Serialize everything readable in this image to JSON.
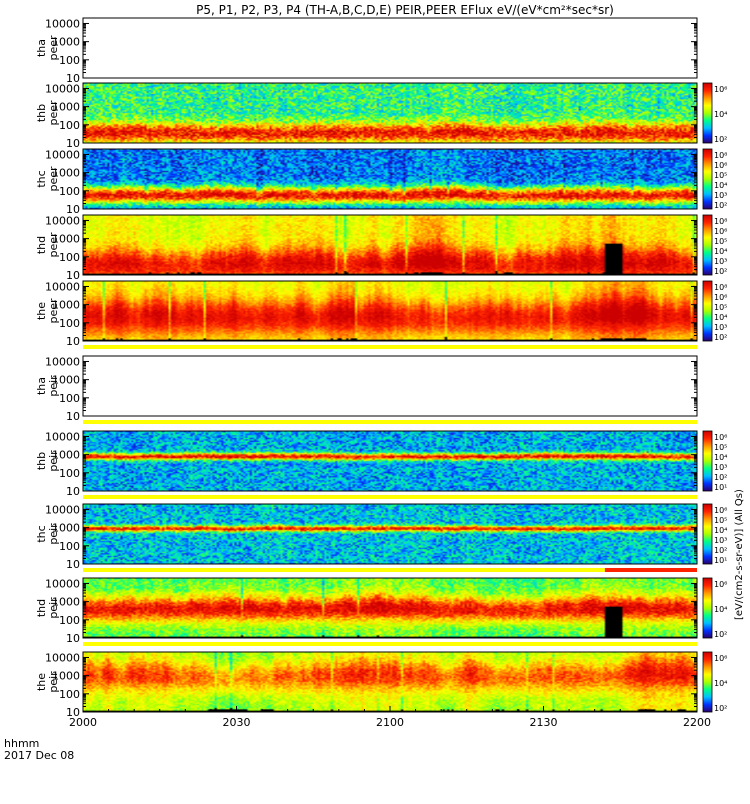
{
  "chart_data": {
    "type": "heatmap",
    "title": "P5, P1, P2, P3, P4 (TH-A,B,C,D,E) PEIR,PEER EFlux eV/(eV*cm²*sec*sr)",
    "x_axis": {
      "label_line1": "hhmm",
      "label_line2": "2017 Dec 08",
      "ticks": [
        "2000",
        "2030",
        "2100",
        "2130",
        "2200"
      ],
      "range_minutes": [
        0,
        120
      ]
    },
    "y_axis": {
      "scale": "log",
      "range": [
        10,
        20000
      ],
      "tick_labels": [
        "10",
        "100",
        "1000",
        "10000"
      ]
    },
    "panels": [
      {
        "label_top": "tha",
        "label_bottom": "peer",
        "has_data": false,
        "low_energy_mask": false,
        "gap_band_after": false
      },
      {
        "label_top": "thb",
        "label_bottom": "peer",
        "has_data": true,
        "colorbar": [
          "10⁶",
          "10⁴",
          "10²"
        ],
        "core_log_energy": 1.55,
        "core_width": 0.55,
        "core_level": 0.93,
        "background_level": 0.38,
        "noise": 0.16,
        "structure": 0.04,
        "low_energy_mask": false,
        "gap_band_after": false
      },
      {
        "label_top": "thc",
        "label_bottom": "peer",
        "has_data": true,
        "colorbar": [
          "10⁸",
          "10⁶",
          "10⁵",
          "10⁴",
          "10³",
          "10²"
        ],
        "core_log_energy": 1.75,
        "core_width": 0.45,
        "core_level": 0.93,
        "background_level": 0.18,
        "noise": 0.14,
        "structure": 0.05,
        "low_energy_mask": false,
        "gap_band_after": false
      },
      {
        "label_top": "thd",
        "label_bottom": "peer",
        "has_data": true,
        "colorbar": [
          "10⁸",
          "10⁶",
          "10⁵",
          "10⁴",
          "10³",
          "10²"
        ],
        "core_log_energy": 1.6,
        "core_width": 0.85,
        "core_level": 0.95,
        "background_level": 0.62,
        "noise": 0.07,
        "structure": 0.12,
        "low_energy_mask": true,
        "gap_band_after": false
      },
      {
        "label_top": "the",
        "label_bottom": "peer",
        "has_data": true,
        "colorbar": [
          "10⁸",
          "10⁶",
          "10⁵",
          "10⁴",
          "10³",
          "10²"
        ],
        "core_log_energy": 2.3,
        "core_width": 1.0,
        "core_level": 0.92,
        "background_level": 0.6,
        "noise": 0.05,
        "structure": 0.14,
        "low_energy_mask": true,
        "gap_band_after": true
      },
      {
        "label_top": "tha",
        "label_bottom": "peir",
        "has_data": false,
        "low_energy_mask": false,
        "gap_band_after": true
      },
      {
        "label_top": "thb",
        "label_bottom": "peir",
        "has_data": true,
        "colorbar": [
          "10⁶",
          "10⁵",
          "10⁴",
          "10³",
          "10²",
          "10¹"
        ],
        "core_log_energy": 2.9,
        "core_width": 0.18,
        "core_level": 0.95,
        "background_level": 0.25,
        "noise": 0.15,
        "structure": 0.02,
        "low_energy_mask": false,
        "gap_band_after": true
      },
      {
        "label_top": "thc",
        "label_bottom": "peir",
        "has_data": true,
        "colorbar": [
          "10⁶",
          "10⁵",
          "10⁴",
          "10³",
          "10²",
          "10¹"
        ],
        "core_log_energy": 2.95,
        "core_width": 0.16,
        "core_level": 0.93,
        "background_level": 0.27,
        "noise": 0.15,
        "structure": 0.02,
        "low_energy_mask": false,
        "gap_band_after": true
      },
      {
        "label_top": "thd",
        "label_bottom": "peir",
        "has_data": true,
        "colorbar": [
          "10⁶",
          "10⁴",
          "10²"
        ],
        "core_log_energy": 2.6,
        "core_width": 0.7,
        "core_level": 0.94,
        "background_level": 0.45,
        "noise": 0.1,
        "structure": 0.1,
        "low_energy_mask": true,
        "gap_band_after": true
      },
      {
        "label_top": "the",
        "label_bottom": "peir",
        "has_data": true,
        "colorbar": [
          "10⁶",
          "10⁴",
          "10²"
        ],
        "core_log_energy": 3.0,
        "core_width": 0.85,
        "core_level": 0.85,
        "background_level": 0.55,
        "noise": 0.08,
        "structure": 0.12,
        "low_energy_mask": true,
        "gap_band_after": false
      }
    ],
    "special_features": {
      "black_block_panels": [
        "thd peer",
        "thd peir"
      ],
      "black_block_time_minutes": [
        102,
        105
      ],
      "red_bar_time_minutes": [
        102,
        120
      ]
    },
    "colorbar_unit_label": "[eV/(cm2-s-sr-eV)] (All Qs)",
    "colormap": [
      "#2a006a",
      "#0033ff",
      "#00bfff",
      "#00ff88",
      "#aaff00",
      "#ffff00",
      "#ff9900",
      "#ff2200",
      "#cc0000"
    ]
  }
}
